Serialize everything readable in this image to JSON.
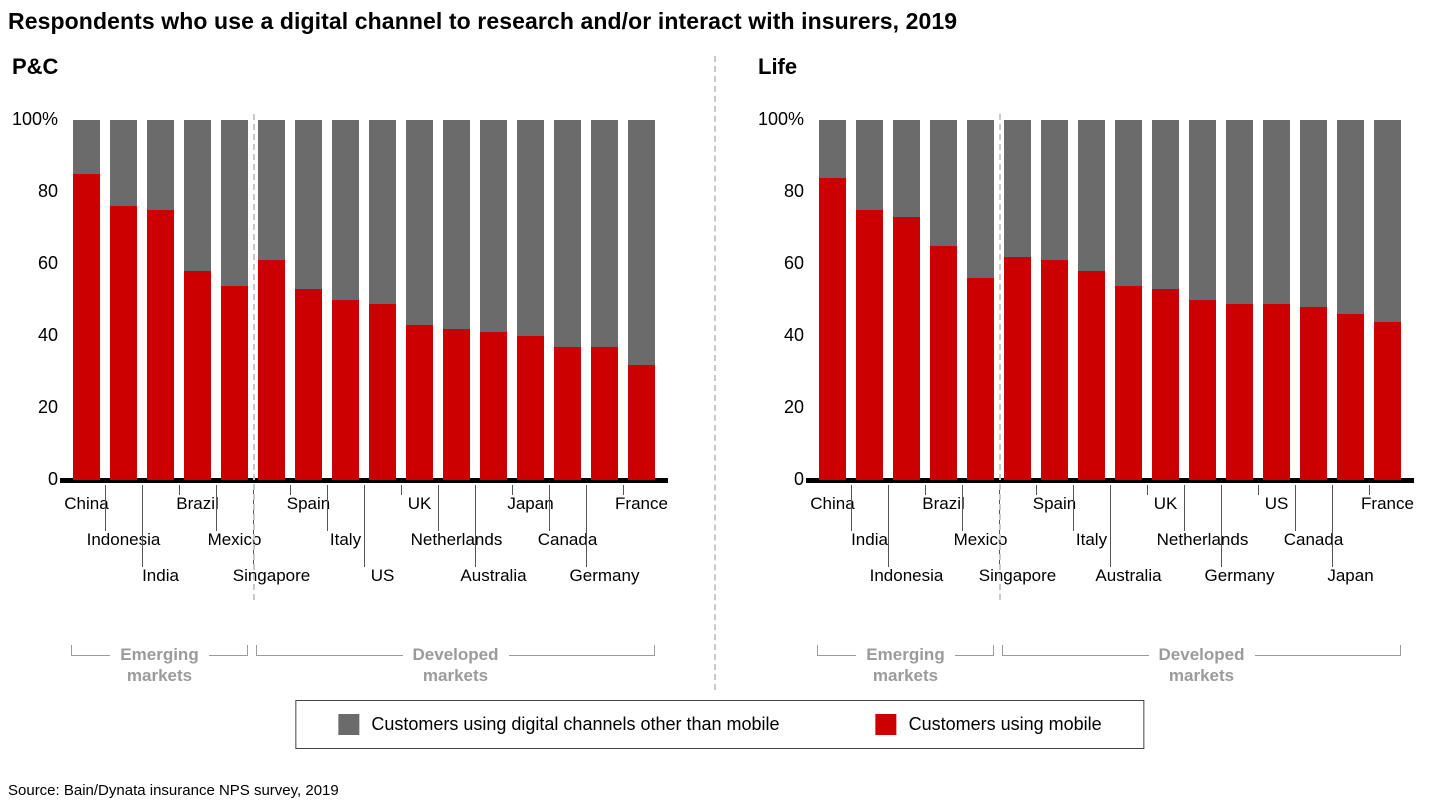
{
  "title": "Respondents who use a digital channel to research and/or interact with insurers, 2019",
  "source": "Source: Bain/Dynata insurance NPS survey, 2019",
  "colors": {
    "mobile": "#cc0000",
    "other": "#6b6b6b"
  },
  "legend": {
    "other_label": "Customers using digital channels other than mobile",
    "mobile_label": "Customers using mobile"
  },
  "axis": {
    "ticks": [
      {
        "value": 0,
        "label": "0"
      },
      {
        "value": 20,
        "label": "20"
      },
      {
        "value": 40,
        "label": "40"
      },
      {
        "value": 60,
        "label": "60"
      },
      {
        "value": 80,
        "label": "80"
      },
      {
        "value": 100,
        "label": "100%"
      }
    ]
  },
  "groups": {
    "emerging": {
      "line1": "Emerging",
      "line2": "markets"
    },
    "developed": {
      "line1": "Developed",
      "line2": "markets"
    }
  },
  "chart_data": [
    {
      "type": "bar",
      "stacked": true,
      "title": "P&C",
      "ylim": [
        0,
        100
      ],
      "emerging_count": 5,
      "categories": [
        "China",
        "Indonesia",
        "India",
        "Brazil",
        "Mexico",
        "Singapore",
        "Spain",
        "Italy",
        "US",
        "UK",
        "Netherlands",
        "Australia",
        "Japan",
        "Canada",
        "Germany",
        "France"
      ],
      "series": [
        {
          "name": "Customers using digital channels other than mobile",
          "color_key": "other",
          "values": [
            15,
            24,
            25,
            42,
            46,
            39,
            47,
            50,
            51,
            57,
            58,
            59,
            60,
            63,
            63,
            68
          ]
        },
        {
          "name": "Customers using mobile",
          "color_key": "mobile",
          "values": [
            85,
            76,
            75,
            58,
            54,
            61,
            53,
            50,
            49,
            43,
            42,
            41,
            40,
            37,
            37,
            32
          ]
        }
      ]
    },
    {
      "type": "bar",
      "stacked": true,
      "title": "Life",
      "ylim": [
        0,
        100
      ],
      "emerging_count": 5,
      "categories": [
        "China",
        "India",
        "Indonesia",
        "Brazil",
        "Mexico",
        "Singapore",
        "Spain",
        "Italy",
        "Australia",
        "UK",
        "Netherlands",
        "Germany",
        "US",
        "Canada",
        "Japan",
        "France"
      ],
      "series": [
        {
          "name": "Customers using digital channels other than mobile",
          "color_key": "other",
          "values": [
            16,
            25,
            27,
            35,
            44,
            38,
            39,
            42,
            46,
            47,
            50,
            51,
            51,
            52,
            54,
            56
          ]
        },
        {
          "name": "Customers using mobile",
          "color_key": "mobile",
          "values": [
            84,
            75,
            73,
            65,
            56,
            62,
            61,
            58,
            54,
            53,
            50,
            49,
            49,
            48,
            46,
            44
          ]
        }
      ]
    }
  ]
}
